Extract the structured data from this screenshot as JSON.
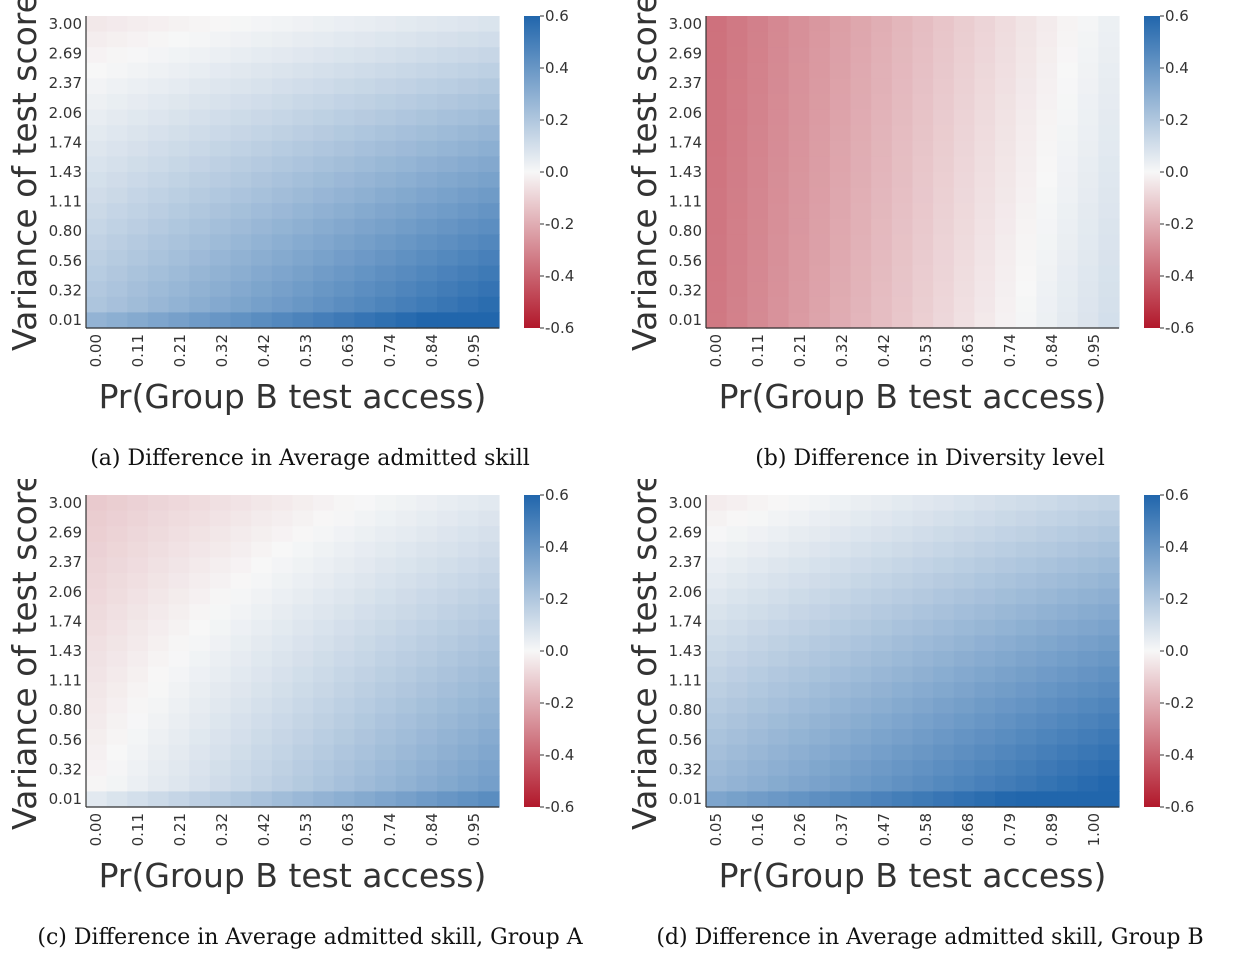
{
  "colorscale": {
    "low": "#b2182b",
    "mid": "#f7f7f7",
    "high": "#2166ac"
  },
  "chart_data": [
    {
      "type": "heatmap",
      "caption": "(a) Difference in Average admitted skill",
      "xlabel": "Pr(Group B test access)",
      "ylabel": "Variance of test score",
      "x_ticks": [
        "0.00",
        "0.11",
        "0.21",
        "0.32",
        "0.42",
        "0.53",
        "0.63",
        "0.74",
        "0.84",
        "0.95"
      ],
      "x_range": [
        0.0,
        1.0
      ],
      "y_ticks": [
        "3.00",
        "2.69",
        "2.37",
        "2.06",
        "1.74",
        "1.43",
        "1.11",
        "0.80",
        "0.56",
        "0.32",
        "0.01"
      ],
      "y_range": [
        0.01,
        3.0
      ],
      "grid_cols": 20,
      "grid_rows": 20,
      "colorbar_ticks": [
        "0.6",
        "0.4",
        "0.2",
        "0.0",
        "-0.2",
        "-0.4",
        "-0.6"
      ],
      "vmin": -0.6,
      "vmax": 0.6,
      "corner_values": {
        "top_left": -0.04,
        "top_right": 0.08,
        "bottom_left": 0.22,
        "bottom_right": 0.6
      }
    },
    {
      "type": "heatmap",
      "caption": "(b) Difference in Diversity level",
      "xlabel": "Pr(Group B test access)",
      "ylabel": "Variance of test score",
      "x_ticks": [
        "0.00",
        "0.11",
        "0.21",
        "0.32",
        "0.42",
        "0.53",
        "0.63",
        "0.74",
        "0.84",
        "0.95"
      ],
      "x_range": [
        0.0,
        1.0
      ],
      "y_ticks": [
        "3.00",
        "2.69",
        "2.37",
        "2.06",
        "1.74",
        "1.43",
        "1.11",
        "0.80",
        "0.56",
        "0.32",
        "0.01"
      ],
      "y_range": [
        0.01,
        3.0
      ],
      "grid_cols": 20,
      "grid_rows": 20,
      "colorbar_ticks": [
        "0.6",
        "0.4",
        "0.2",
        "0.0",
        "-0.2",
        "-0.4",
        "-0.6"
      ],
      "vmin": -0.6,
      "vmax": 0.6,
      "corner_values": {
        "top_left": -0.36,
        "top_right": 0.03,
        "bottom_left": -0.34,
        "bottom_right": 0.1
      }
    },
    {
      "type": "heatmap",
      "caption": "(c) Difference in Average admitted skill, Group A",
      "xlabel": "Pr(Group B test access)",
      "ylabel": "Variance of test score",
      "x_ticks": [
        "0.00",
        "0.11",
        "0.21",
        "0.32",
        "0.42",
        "0.53",
        "0.63",
        "0.74",
        "0.84",
        "0.95"
      ],
      "x_range": [
        0.0,
        1.0
      ],
      "y_ticks": [
        "3.00",
        "2.69",
        "2.37",
        "2.06",
        "1.74",
        "1.43",
        "1.11",
        "0.80",
        "0.56",
        "0.32",
        "0.01"
      ],
      "y_range": [
        0.01,
        3.0
      ],
      "grid_cols": 20,
      "grid_rows": 20,
      "colorbar_ticks": [
        "0.6",
        "0.4",
        "0.2",
        "0.0",
        "-0.2",
        "-0.4",
        "-0.6"
      ],
      "vmin": -0.6,
      "vmax": 0.6,
      "corner_values": {
        "top_left": -0.12,
        "top_right": 0.06,
        "bottom_left": 0.0,
        "bottom_right": 0.38
      }
    },
    {
      "type": "heatmap",
      "caption": "(d) Difference in Average admitted skill, Group B",
      "xlabel": "Pr(Group B test access)",
      "ylabel": "Variance of test score",
      "x_ticks": [
        "0.05",
        "0.16",
        "0.26",
        "0.37",
        "0.47",
        "0.58",
        "0.68",
        "0.79",
        "0.89",
        "1.00"
      ],
      "x_range": [
        0.05,
        1.0
      ],
      "y_ticks": [
        "3.00",
        "2.69",
        "2.37",
        "2.06",
        "1.74",
        "1.43",
        "1.11",
        "0.80",
        "0.56",
        "0.32",
        "0.01"
      ],
      "y_range": [
        0.01,
        3.0
      ],
      "grid_cols": 20,
      "grid_rows": 20,
      "colorbar_ticks": [
        "0.6",
        "0.4",
        "0.2",
        "0.0",
        "-0.2",
        "-0.4",
        "-0.6"
      ],
      "vmin": -0.6,
      "vmax": 0.6,
      "corner_values": {
        "top_left": -0.03,
        "top_right": 0.15,
        "bottom_left": 0.28,
        "bottom_right": 0.62
      }
    }
  ]
}
